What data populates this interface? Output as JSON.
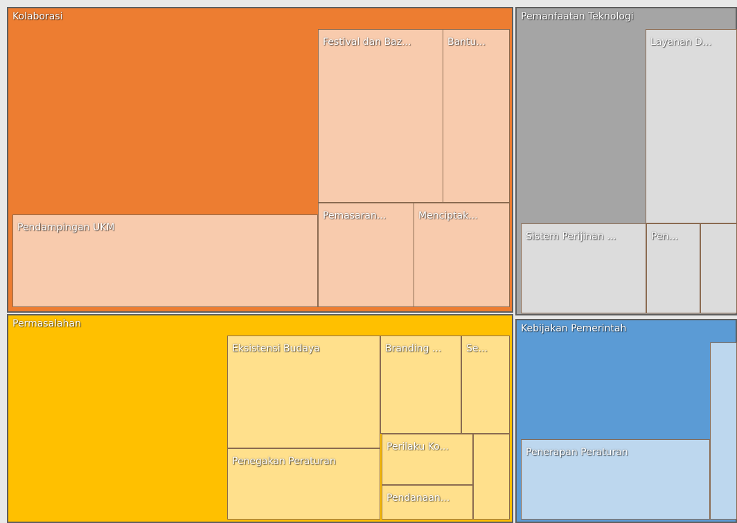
{
  "groups": [
    {
      "label": "Kolaborasi",
      "color": "#ED7D31",
      "child_color": "#F8CBAD",
      "children": [
        "Pendampingan UKM",
        "Festival dan Baz...",
        "Bantu...",
        "Pemasaran...",
        "Menciptak..."
      ]
    },
    {
      "label": "Pemanfaatan Teknologi",
      "color": "#A5A5A5",
      "child_color": "#DCDCDC",
      "children": [
        "Layanan D...",
        "Sistem Perijinan ...",
        "Pen...",
        null
      ]
    },
    {
      "label": "Permasalahan",
      "color": "#FFC000",
      "child_color": "#FFE08C",
      "children": [
        "Eksistensi Budaya",
        "Branding ...",
        "Se...",
        "Penegakan Peraturan",
        "Perilaku Ko...",
        "Pendanaan...",
        null
      ]
    },
    {
      "label": "Kebijakan Pemerintah",
      "color": "#5B9BD5",
      "child_color": "#BDD7EE",
      "children": [
        "Penerapan Peraturan",
        null
      ]
    }
  ]
}
